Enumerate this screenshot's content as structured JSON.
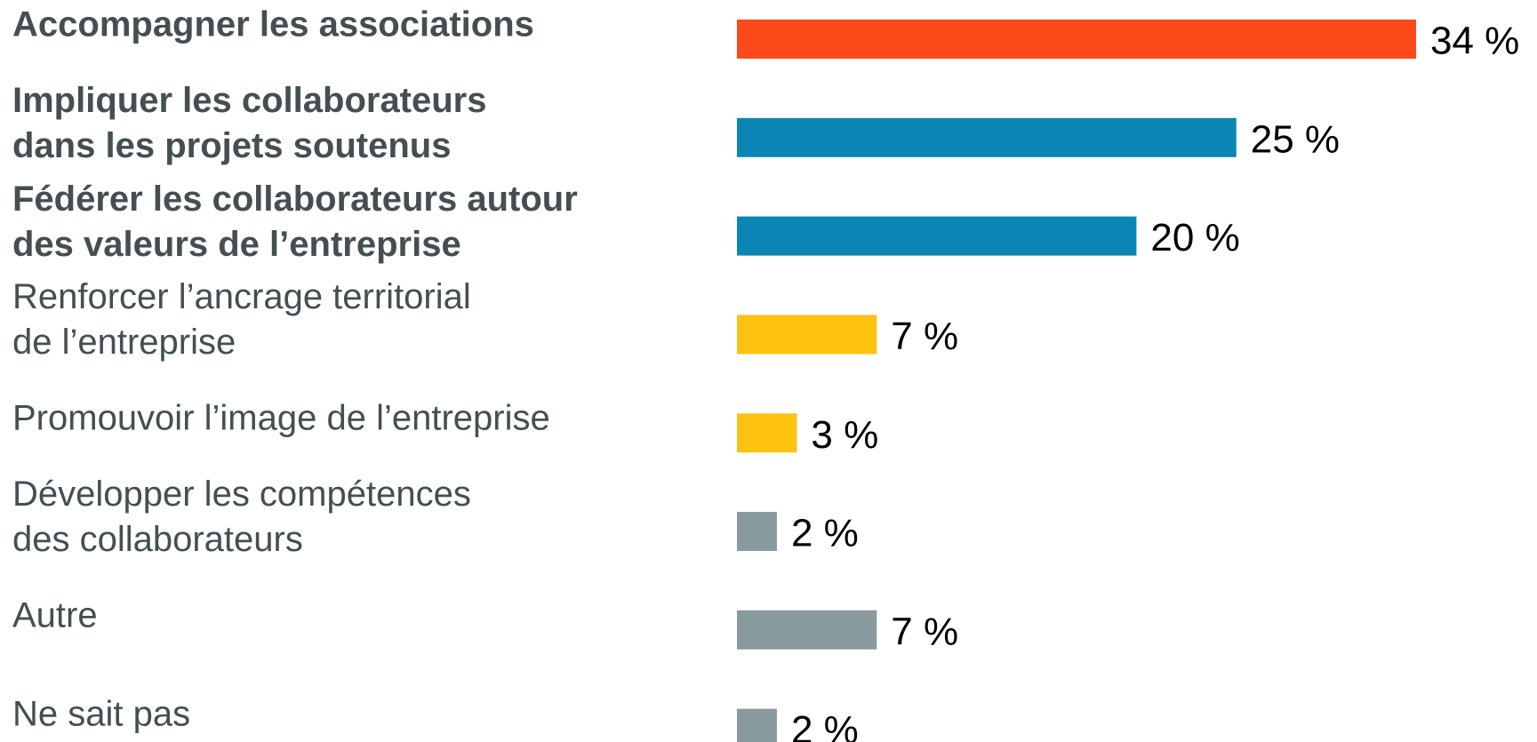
{
  "chart_data": {
    "type": "hbar",
    "categories": [
      "Accompagner les associations",
      "Impliquer les collaborateurs\ndans les projets soutenus",
      "Fédérer les collaborateurs autour\ndes valeurs de l’entreprise",
      "Renforcer l’ancrage territorial\nde l’entreprise",
      "Promouvoir l’image de l’entreprise",
      "Développer les compétences\ndes collaborateurs",
      "Autre",
      "Ne sait pas"
    ],
    "values": [
      34,
      25,
      20,
      7,
      3,
      2,
      7,
      2
    ],
    "value_labels": [
      "34 %",
      "25 %",
      "20 %",
      "7 %",
      "3 %",
      "2 %",
      "7 %",
      "2 %"
    ],
    "colors": [
      "#fc4a1a",
      "#0b86b4",
      "#0b86b4",
      "#fec210",
      "#fec210",
      "#8a9ba0",
      "#8a9ba0",
      "#8a9ba0"
    ],
    "label_weights": [
      "bold",
      "bold",
      "bold",
      "normal",
      "normal",
      "normal",
      "normal",
      "normal"
    ]
  }
}
